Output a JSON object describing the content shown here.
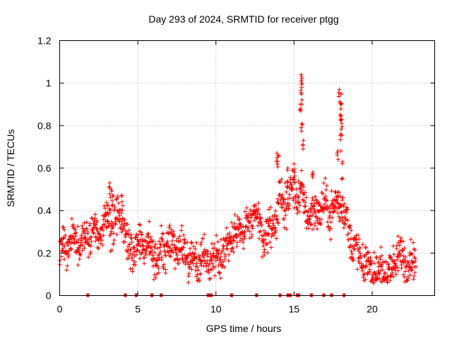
{
  "chart_data": {
    "type": "scatter",
    "title": "Day 293 of 2024, SRMTID for receiver ptgg",
    "xlabel": "GPS time / hours",
    "ylabel": "SRMTID / TECUs",
    "xlim": [
      0,
      24
    ],
    "ylim": [
      0,
      1.2
    ],
    "grid": true,
    "marker": "+",
    "color": "#ff0000",
    "x_ticks": [
      0,
      5,
      10,
      15,
      20
    ],
    "x_tick_labels": [
      "0",
      "5",
      "10",
      "15",
      "20"
    ],
    "y_ticks": [
      0,
      0.2,
      0.4,
      0.6,
      0.8,
      1.0,
      1.2
    ],
    "y_tick_labels": [
      "0",
      "0.2",
      "0.4",
      "0.6",
      "0.8",
      "1",
      "1.2"
    ],
    "series": [
      {
        "name": "SRMTID",
        "trend": [
          [
            0.0,
            0.2
          ],
          [
            0.5,
            0.24
          ],
          [
            1.0,
            0.27
          ],
          [
            1.5,
            0.26
          ],
          [
            2.0,
            0.3
          ],
          [
            2.5,
            0.28
          ],
          [
            3.0,
            0.36
          ],
          [
            3.5,
            0.33
          ],
          [
            4.0,
            0.4
          ],
          [
            4.3,
            0.22
          ],
          [
            5.0,
            0.24
          ],
          [
            5.5,
            0.26
          ],
          [
            6.0,
            0.17
          ],
          [
            6.5,
            0.2
          ],
          [
            7.0,
            0.24
          ],
          [
            8.0,
            0.21
          ],
          [
            8.5,
            0.17
          ],
          [
            9.0,
            0.17
          ],
          [
            9.5,
            0.19
          ],
          [
            10.0,
            0.16
          ],
          [
            10.5,
            0.2
          ],
          [
            11.0,
            0.28
          ],
          [
            11.5,
            0.3
          ],
          [
            12.0,
            0.32
          ],
          [
            12.5,
            0.38
          ],
          [
            13.0,
            0.28
          ],
          [
            13.5,
            0.3
          ],
          [
            14.0,
            0.42
          ],
          [
            14.5,
            0.45
          ],
          [
            15.0,
            0.5
          ],
          [
            15.5,
            0.46
          ],
          [
            16.0,
            0.38
          ],
          [
            16.5,
            0.4
          ],
          [
            17.0,
            0.42
          ],
          [
            17.5,
            0.4
          ],
          [
            18.0,
            0.45
          ],
          [
            18.5,
            0.3
          ],
          [
            19.0,
            0.2
          ],
          [
            19.5,
            0.15
          ],
          [
            20.0,
            0.13
          ],
          [
            20.5,
            0.11
          ],
          [
            21.0,
            0.1
          ],
          [
            21.5,
            0.17
          ],
          [
            22.0,
            0.18
          ],
          [
            22.5,
            0.15
          ],
          [
            22.8,
            0.17
          ]
        ],
        "peaks": [
          [
            3.2,
            0.53
          ],
          [
            3.3,
            0.5
          ],
          [
            3.4,
            0.47
          ],
          [
            4.0,
            0.47
          ],
          [
            13.9,
            0.67
          ],
          [
            14.0,
            0.66
          ],
          [
            15.45,
            1.04
          ],
          [
            15.5,
            1.02
          ],
          [
            15.48,
            0.98
          ],
          [
            15.4,
            0.9
          ],
          [
            15.5,
            0.81
          ],
          [
            15.6,
            0.73
          ],
          [
            17.9,
            0.97
          ],
          [
            18.0,
            0.95
          ],
          [
            18.0,
            0.9
          ],
          [
            17.95,
            0.85
          ],
          [
            18.05,
            0.81
          ],
          [
            18.0,
            0.76
          ],
          [
            17.8,
            0.68
          ],
          [
            18.1,
            0.63
          ],
          [
            16.2,
            0.58
          ],
          [
            15.0,
            0.62
          ],
          [
            14.6,
            0.6
          ]
        ]
      }
    ],
    "baseline_markers_x": [
      1.8,
      4.2,
      4.9,
      5.9,
      6.5,
      9.5,
      9.6,
      9.7,
      11.0,
      12.6,
      14.1,
      14.6,
      14.75,
      15.2,
      15.3,
      16.1,
      16.9,
      17.4,
      18.2
    ]
  }
}
